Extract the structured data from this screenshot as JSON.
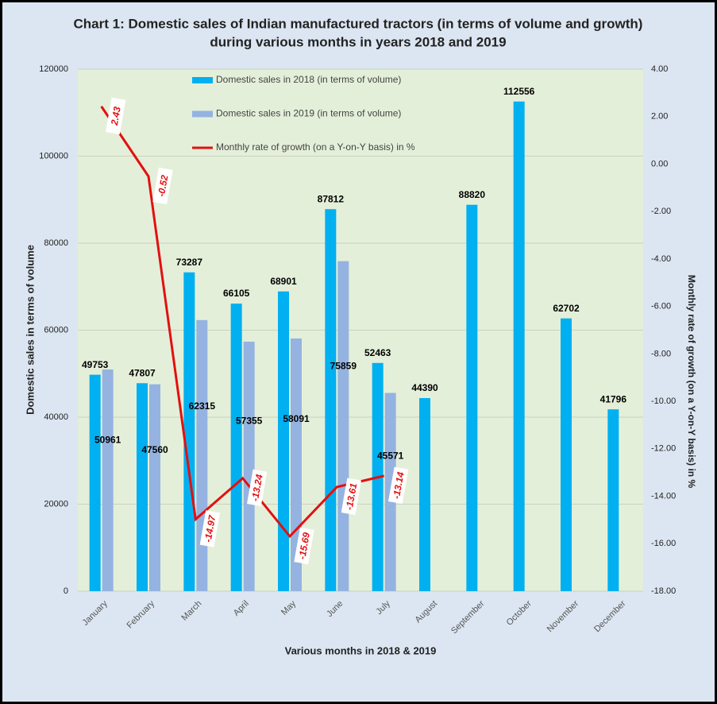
{
  "chart_data": {
    "type": "bar",
    "title": [
      "Chart 1: Domestic sales of Indian manufactured tractors (in terms of volume and growth)",
      "during various months in years 2018 and 2019"
    ],
    "x_label": "Various months in 2018  & 2019",
    "y_label": "Domestic sales in terms of volume",
    "y2_label": "Monthly rate of growth (on a Y-on-Y basis) in %",
    "categories": [
      "January",
      "February",
      "March",
      "April",
      "May",
      "June",
      "July",
      "August",
      "September",
      "October",
      "November",
      "December"
    ],
    "series": [
      {
        "name": "Domestic sales in 2018 (in terms of volume)",
        "color": "#00b0f0",
        "values": [
          49753,
          47807,
          73287,
          66105,
          68901,
          87812,
          52463,
          44390,
          88820,
          112556,
          62702,
          41796
        ]
      },
      {
        "name": "Domestic sales in 2019 (in terms of volume)",
        "color": "#95b3e0",
        "values": [
          50961,
          47560,
          62315,
          57355,
          58091,
          75859,
          45571,
          null,
          null,
          null,
          null,
          null
        ]
      },
      {
        "name": "Monthly rate of growth (on a Y-on-Y basis) in %",
        "color": "#e31010",
        "type": "line",
        "axis": "y2",
        "values": [
          2.43,
          -0.52,
          -14.97,
          -13.24,
          -15.69,
          -13.61,
          -13.14,
          null,
          null,
          null,
          null,
          null
        ]
      }
    ],
    "ylim": [
      0,
      120000
    ],
    "yticks": [
      0,
      20000,
      40000,
      60000,
      80000,
      100000,
      120000
    ],
    "y2lim": [
      -18,
      4
    ],
    "y2ticks": [
      {
        "value": -18,
        "label": "-18.00"
      },
      {
        "value": -16,
        "label": "-16.00"
      },
      {
        "value": -14,
        "label": "-14.00"
      },
      {
        "value": -12,
        "label": "-12.00"
      },
      {
        "value": -10,
        "label": "-10.00"
      },
      {
        "value": -8,
        "label": "-8.00"
      },
      {
        "value": -6,
        "label": "-6.00"
      },
      {
        "value": -4,
        "label": "-4.00"
      },
      {
        "value": -2,
        "label": "-2.00"
      },
      {
        "value": 0,
        "label": "0.00"
      },
      {
        "value": 2,
        "label": "2.00"
      },
      {
        "value": 4,
        "label": "4.00"
      }
    ],
    "grid": true,
    "legend": "top"
  }
}
